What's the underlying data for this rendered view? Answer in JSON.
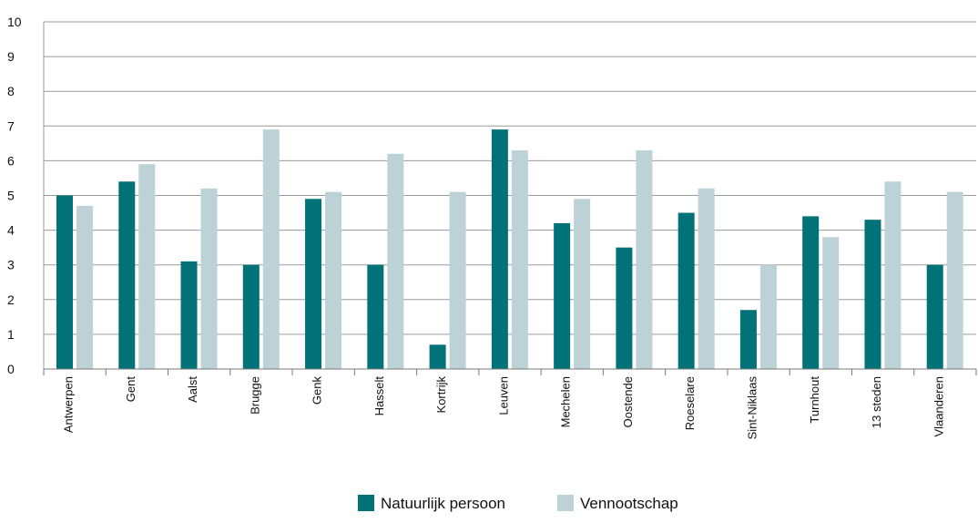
{
  "chart_data": {
    "type": "bar",
    "title": "",
    "xlabel": "",
    "ylabel": "",
    "ylim": [
      0,
      10
    ],
    "yticks": [
      0,
      1,
      2,
      3,
      4,
      5,
      6,
      7,
      8,
      9,
      10
    ],
    "grid": "horizontal",
    "legend_position": "bottom-center",
    "categories": [
      "Antwerpen",
      "Gent",
      "Aalst",
      "Brugge",
      "Genk",
      "Hasselt",
      "Kortrijk",
      "Leuven",
      "Mechelen",
      "Oostende",
      "Roeselare",
      "Sint-Niklaas",
      "Turnhout",
      "13 steden",
      "Vlaanderen"
    ],
    "series": [
      {
        "name": "Natuurlijk persoon",
        "color": "#007278",
        "values": [
          5.0,
          5.4,
          3.1,
          3.0,
          4.9,
          3.0,
          0.7,
          6.9,
          4.2,
          3.5,
          4.5,
          1.7,
          4.4,
          4.3,
          3.0
        ]
      },
      {
        "name": "Vennootschap",
        "color": "#bdd2d6",
        "values": [
          4.7,
          5.9,
          5.2,
          6.9,
          5.1,
          6.2,
          5.1,
          6.3,
          4.9,
          6.3,
          5.2,
          3.0,
          3.8,
          5.4,
          5.1
        ]
      }
    ]
  }
}
